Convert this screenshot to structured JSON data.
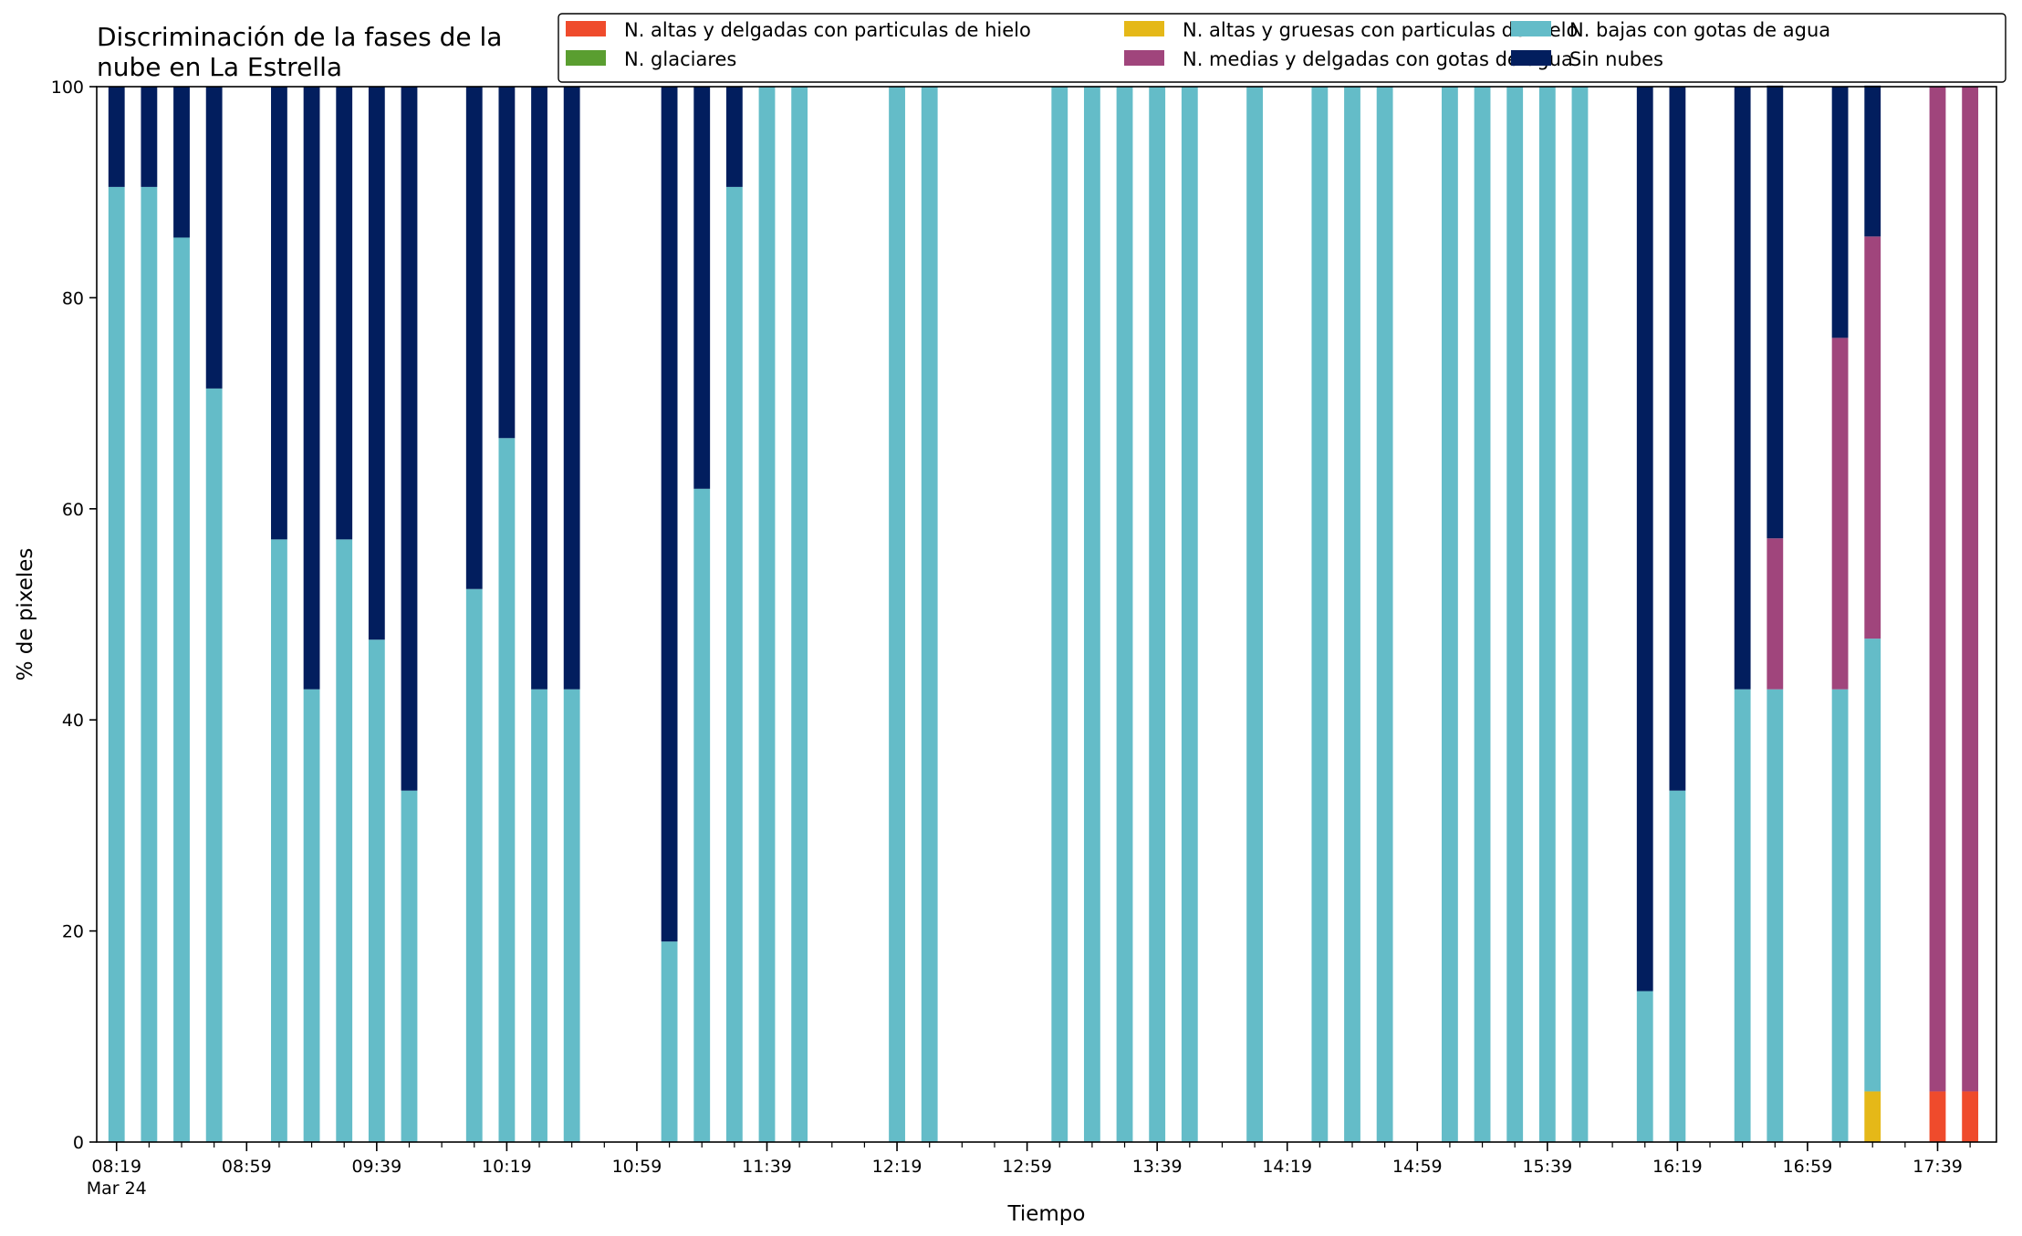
{
  "chart_data": {
    "type": "bar",
    "stacked": true,
    "title": "Discriminación de la fases de la nube en La Estrella",
    "xlabel": "Tiempo",
    "ylabel": "% de pixeles",
    "ylim": [
      0,
      100
    ],
    "yticks": [
      0,
      20,
      40,
      60,
      80,
      100
    ],
    "x_start": "08:19",
    "x_end": "17:49",
    "x_tick_labels": [
      "08:19",
      "08:59",
      "09:39",
      "10:19",
      "10:59",
      "11:39",
      "12:19",
      "12:59",
      "13:39",
      "14:19",
      "14:59",
      "15:39",
      "16:19",
      "16:59",
      "17:39"
    ],
    "x_date_label": "Mar 24",
    "legend_position": "upper-right",
    "legend_columns": 3,
    "series": [
      {
        "name": "N. altas y delgadas con particulas de hielo",
        "color": "#ef4b2c"
      },
      {
        "name": "N. altas y gruesas con particulas de hielo",
        "color": "#e5b818"
      },
      {
        "name": "N. bajas con gotas de agua",
        "color": "#64bcc8"
      },
      {
        "name": "N. glaciares",
        "color": "#5a9e30"
      },
      {
        "name": "N. medias y delgadas con gotas de agua",
        "color": "#a0457c"
      },
      {
        "name": "Sin nubes",
        "color": "#021e5e"
      }
    ],
    "stack_order": [
      "N. altas y delgadas con particulas de hielo",
      "N. altas y gruesas con particulas de hielo",
      "N. bajas con gotas de agua",
      "N. glaciares",
      "N. medias y delgadas con gotas de agua",
      "Sin nubes"
    ],
    "bars": [
      {
        "time": "08:19",
        "values": [
          0,
          0,
          90.5,
          0,
          0,
          9.5
        ]
      },
      {
        "time": "08:29",
        "values": [
          0,
          0,
          90.5,
          0,
          0,
          9.5
        ]
      },
      {
        "time": "08:39",
        "values": [
          0,
          0,
          85.7,
          0,
          0,
          14.3
        ]
      },
      {
        "time": "08:49",
        "values": [
          0,
          0,
          71.4,
          0,
          0,
          28.6
        ]
      },
      {
        "time": "09:09",
        "values": [
          0,
          0,
          57.1,
          0,
          0,
          42.9
        ]
      },
      {
        "time": "09:19",
        "values": [
          0,
          0,
          42.9,
          0,
          0,
          57.1
        ]
      },
      {
        "time": "09:29",
        "values": [
          0,
          0,
          57.1,
          0,
          0,
          42.9
        ]
      },
      {
        "time": "09:39",
        "values": [
          0,
          0,
          47.6,
          0,
          0,
          52.4
        ]
      },
      {
        "time": "09:49",
        "values": [
          0,
          0,
          33.3,
          0,
          0,
          66.7
        ]
      },
      {
        "time": "10:09",
        "values": [
          0,
          0,
          52.4,
          0,
          0,
          47.6
        ]
      },
      {
        "time": "10:19",
        "values": [
          0,
          0,
          66.7,
          0,
          0,
          33.3
        ]
      },
      {
        "time": "10:29",
        "values": [
          0,
          0,
          42.9,
          0,
          0,
          57.1
        ]
      },
      {
        "time": "10:39",
        "values": [
          0,
          0,
          42.9,
          0,
          0,
          57.1
        ]
      },
      {
        "time": "11:09",
        "values": [
          0,
          0,
          19.0,
          0,
          0,
          81.0
        ]
      },
      {
        "time": "11:19",
        "values": [
          0,
          0,
          61.9,
          0,
          0,
          38.1
        ]
      },
      {
        "time": "11:29",
        "values": [
          0,
          0,
          90.5,
          0,
          0,
          9.5
        ]
      },
      {
        "time": "11:39",
        "values": [
          0,
          0,
          100,
          0,
          0,
          0
        ]
      },
      {
        "time": "11:49",
        "values": [
          0,
          0,
          100,
          0,
          0,
          0
        ]
      },
      {
        "time": "12:19",
        "values": [
          0,
          0,
          100,
          0,
          0,
          0
        ]
      },
      {
        "time": "12:29",
        "values": [
          0,
          0,
          100,
          0,
          0,
          0
        ]
      },
      {
        "time": "13:09",
        "values": [
          0,
          0,
          100,
          0,
          0,
          0
        ]
      },
      {
        "time": "13:19",
        "values": [
          0,
          0,
          100,
          0,
          0,
          0
        ]
      },
      {
        "time": "13:29",
        "values": [
          0,
          0,
          100,
          0,
          0,
          0
        ]
      },
      {
        "time": "13:39",
        "values": [
          0,
          0,
          100,
          0,
          0,
          0
        ]
      },
      {
        "time": "13:49",
        "values": [
          0,
          0,
          100,
          0,
          0,
          0
        ]
      },
      {
        "time": "14:09",
        "values": [
          0,
          0,
          100,
          0,
          0,
          0
        ]
      },
      {
        "time": "14:29",
        "values": [
          0,
          0,
          100,
          0,
          0,
          0
        ]
      },
      {
        "time": "14:39",
        "values": [
          0,
          0,
          100,
          0,
          0,
          0
        ]
      },
      {
        "time": "14:49",
        "values": [
          0,
          0,
          100,
          0,
          0,
          0
        ]
      },
      {
        "time": "15:09",
        "values": [
          0,
          0,
          100,
          0,
          0,
          0
        ]
      },
      {
        "time": "15:19",
        "values": [
          0,
          0,
          100,
          0,
          0,
          0
        ]
      },
      {
        "time": "15:29",
        "values": [
          0,
          0,
          100,
          0,
          0,
          0
        ]
      },
      {
        "time": "15:39",
        "values": [
          0,
          0,
          100,
          0,
          0,
          0
        ]
      },
      {
        "time": "15:49",
        "values": [
          0,
          0,
          100,
          0,
          0,
          0
        ]
      },
      {
        "time": "16:09",
        "values": [
          0,
          0,
          14.3,
          0,
          0,
          85.7
        ]
      },
      {
        "time": "16:19",
        "values": [
          0,
          0,
          33.3,
          0,
          0,
          66.7
        ]
      },
      {
        "time": "16:39",
        "values": [
          0,
          0,
          42.9,
          0,
          0,
          57.1
        ]
      },
      {
        "time": "16:49",
        "values": [
          0,
          0,
          42.9,
          0,
          14.3,
          42.9
        ]
      },
      {
        "time": "17:09",
        "values": [
          0,
          0,
          42.9,
          0,
          33.3,
          23.8
        ]
      },
      {
        "time": "17:19",
        "values": [
          0,
          4.8,
          42.9,
          0,
          38.1,
          14.3
        ]
      },
      {
        "time": "17:39",
        "values": [
          4.8,
          0,
          0,
          0,
          95.2,
          0
        ]
      },
      {
        "time": "17:49",
        "values": [
          4.8,
          0,
          0,
          0,
          95.2,
          0
        ]
      }
    ]
  }
}
